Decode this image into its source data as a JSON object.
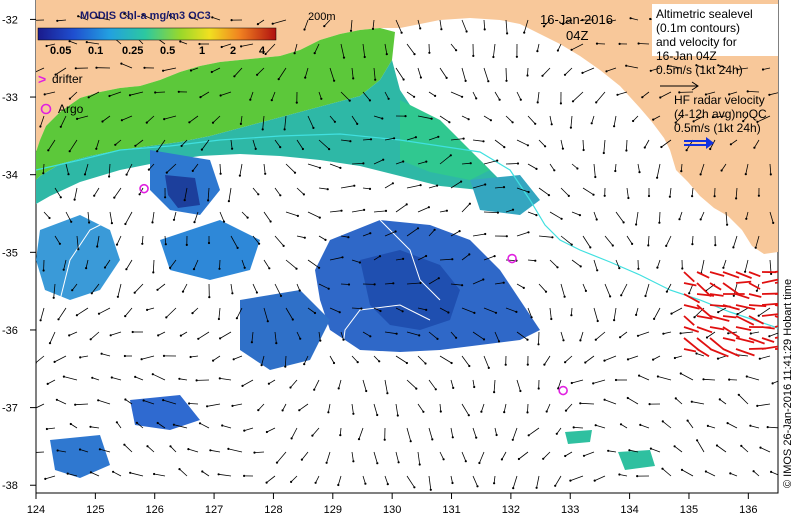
{
  "colorbar": {
    "title": "MODIS Chl-a mg/m3 OC3",
    "ticks": [
      "0.05",
      "0.1",
      "0.25",
      "0.5",
      "1",
      "2",
      "4"
    ]
  },
  "isobath_label": "200m",
  "date_label": "16-Jan-2016",
  "time_label": "04Z",
  "legend": {
    "drifter": "drifter",
    "argo": "Argo",
    "altimetry": [
      "Altimetric sealevel",
      "(0.1m contours)",
      "and velocity for",
      "16-Jan 04Z"
    ],
    "altimetry_scale": "0.5m/s (1kt 24h)",
    "hf_radar": [
      "HF radar velocity",
      "(4-12h avg)noQC"
    ],
    "hf_radar_scale": "0.5m/s (1kt 24h)"
  },
  "credit": "© IMOS 26-Jan-2016 11:41:29 Hobart time",
  "y_axis": {
    "ticks": [
      "-32",
      "-33",
      "-34",
      "-35",
      "-36",
      "-37",
      "-38"
    ]
  },
  "x_axis": {
    "ticks": [
      "124",
      "125",
      "126",
      "127",
      "128",
      "129",
      "130",
      "131",
      "132",
      "133",
      "134",
      "135",
      "136"
    ]
  },
  "argo_floats": [
    {
      "lon": 125.82,
      "lat": -34.18
    },
    {
      "lon": 132.02,
      "lat": -35.08
    },
    {
      "lon": 132.88,
      "lat": -36.78
    }
  ],
  "colors": {
    "land": "#f8c89a",
    "chl_low": "#1f3fa8",
    "chl_mid": "#2fa6c8",
    "chl_high": "#7cd02c",
    "argo": "#e020e0",
    "hf_radar": "#e01010",
    "hf_scale_arrow": "#1030e0",
    "contour_isobath": "#40e0e0"
  }
}
